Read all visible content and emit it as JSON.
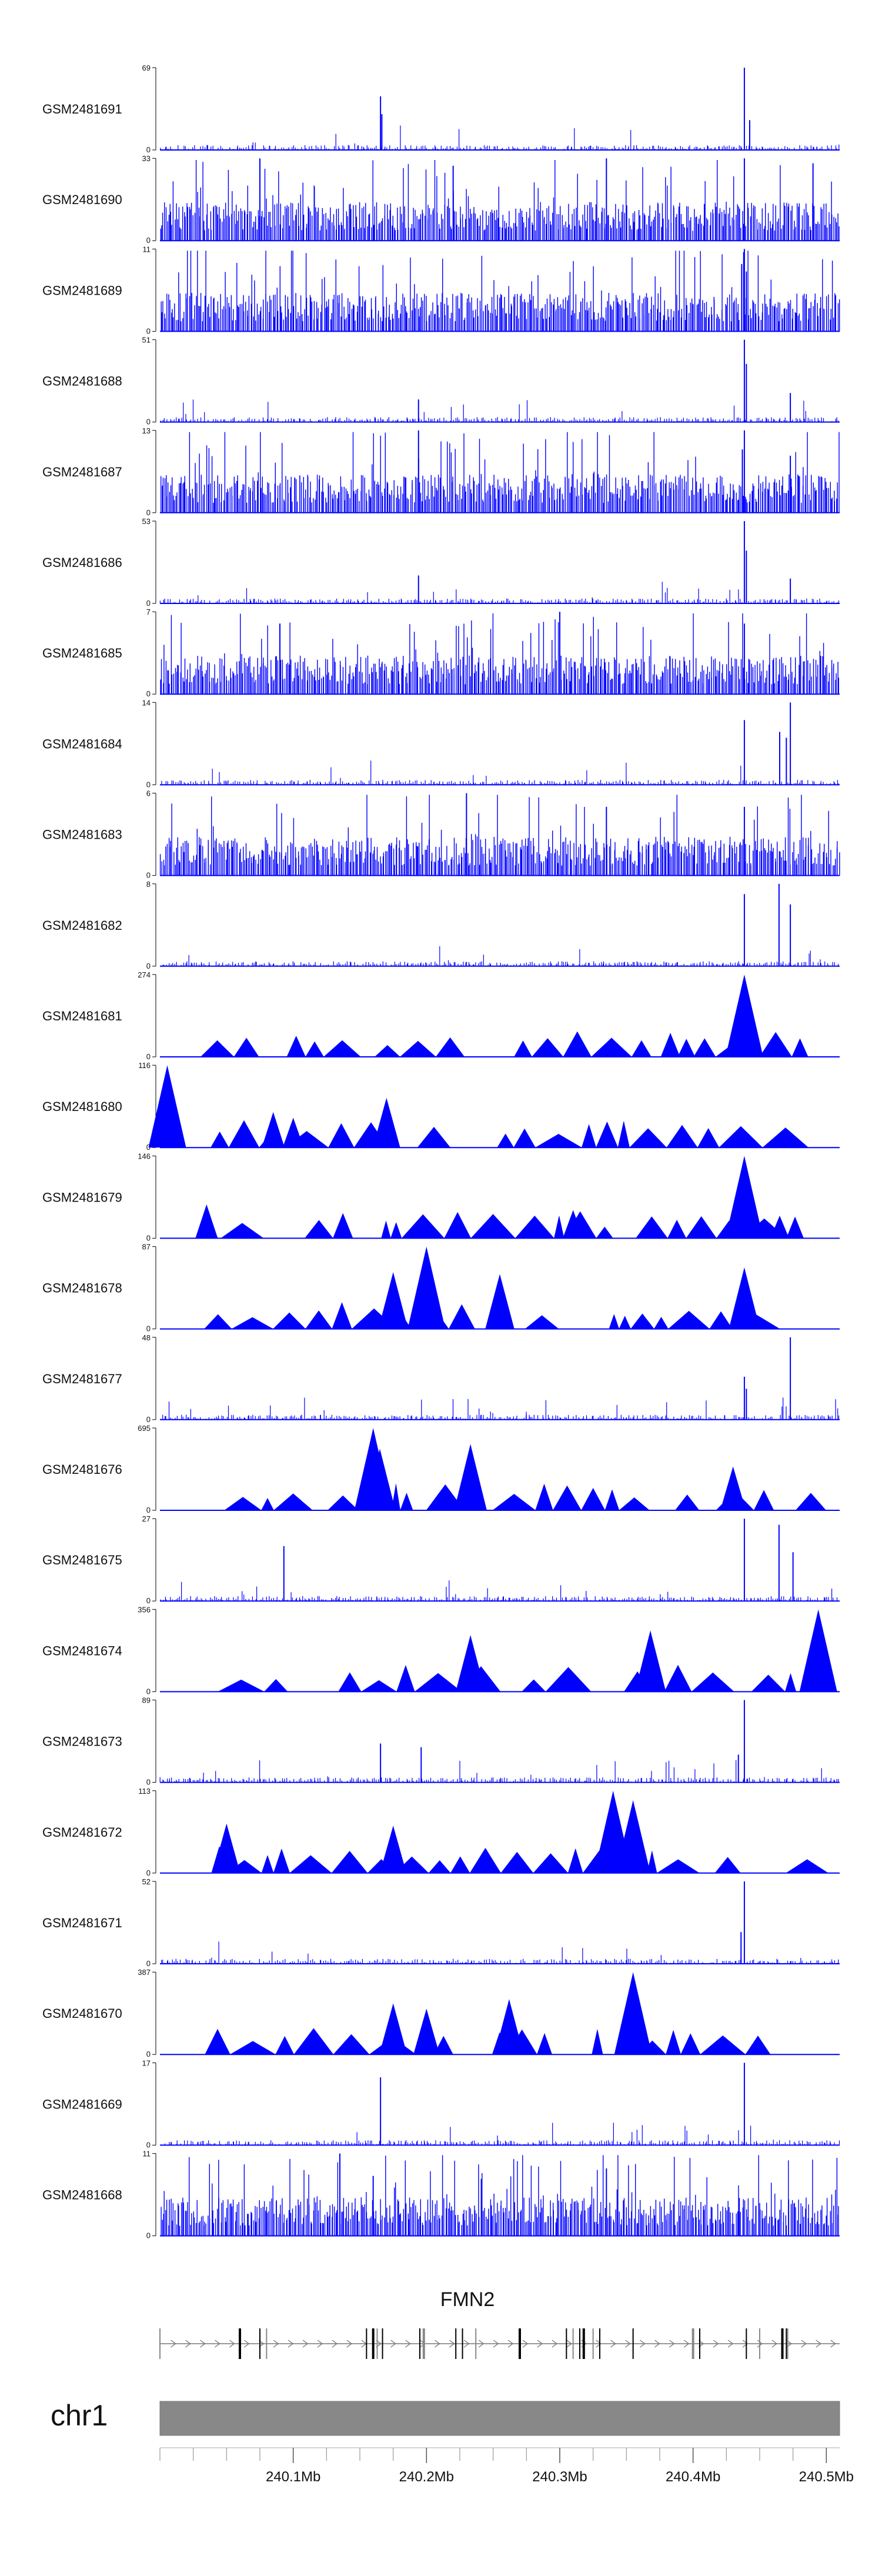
{
  "chart_data": {
    "type": "area",
    "title": "",
    "color": "#0000ff",
    "tracks": [
      {
        "name": "GSM2481691",
        "ymax": 69,
        "ymin": 0,
        "style": "spiky",
        "peaks": [
          {
            "x": 240.1655,
            "v": 45
          },
          {
            "x": 240.1665,
            "v": 30
          },
          {
            "x": 240.4385,
            "v": 69
          },
          {
            "x": 240.4425,
            "v": 25
          }
        ]
      },
      {
        "name": "GSM2481690",
        "ymax": 33,
        "ymin": 0,
        "style": "dense",
        "peaks": [
          {
            "x": 240.075,
            "v": 33
          },
          {
            "x": 240.22,
            "v": 30
          },
          {
            "x": 240.335,
            "v": 33
          },
          {
            "x": 240.4385,
            "v": 33
          },
          {
            "x": 240.49,
            "v": 31
          }
        ]
      },
      {
        "name": "GSM2481689",
        "ymax": 11,
        "ymin": 0,
        "style": "dense",
        "peaks": [
          {
            "x": 240.4385,
            "v": 11
          },
          {
            "x": 240.4365,
            "v": 9
          },
          {
            "x": 240.44,
            "v": 8
          }
        ]
      },
      {
        "name": "GSM2481688",
        "ymax": 51,
        "ymin": 0,
        "style": "spiky",
        "peaks": [
          {
            "x": 240.194,
            "v": 14
          },
          {
            "x": 240.4385,
            "v": 51
          },
          {
            "x": 240.44,
            "v": 36
          },
          {
            "x": 240.473,
            "v": 18
          }
        ]
      },
      {
        "name": "GSM2481687",
        "ymax": 13,
        "ymin": 0,
        "style": "dense",
        "peaks": [
          {
            "x": 240.194,
            "v": 13
          },
          {
            "x": 240.4385,
            "v": 13
          },
          {
            "x": 240.437,
            "v": 10
          },
          {
            "x": 240.473,
            "v": 9
          }
        ]
      },
      {
        "name": "GSM2481686",
        "ymax": 53,
        "ymin": 0,
        "style": "spiky",
        "peaks": [
          {
            "x": 240.194,
            "v": 18
          },
          {
            "x": 240.4385,
            "v": 53
          },
          {
            "x": 240.44,
            "v": 34
          },
          {
            "x": 240.473,
            "v": 16
          }
        ]
      },
      {
        "name": "GSM2481685",
        "ymax": 7,
        "ymin": 0,
        "style": "dense",
        "peaks": [
          {
            "x": 240.09,
            "v": 6
          },
          {
            "x": 240.3,
            "v": 7
          },
          {
            "x": 240.4385,
            "v": 6
          }
        ]
      },
      {
        "name": "GSM2481684",
        "ymax": 14,
        "ymin": 0,
        "style": "spiky",
        "peaks": [
          {
            "x": 240.4385,
            "v": 11
          },
          {
            "x": 240.465,
            "v": 9
          },
          {
            "x": 240.473,
            "v": 14
          },
          {
            "x": 240.47,
            "v": 8
          }
        ]
      },
      {
        "name": "GSM2481683",
        "ymax": 6,
        "ymin": 0,
        "style": "dense",
        "peaks": [
          {
            "x": 240.23,
            "v": 6
          },
          {
            "x": 240.335,
            "v": 5
          },
          {
            "x": 240.4385,
            "v": 5
          }
        ]
      },
      {
        "name": "GSM2481682",
        "ymax": 8,
        "ymin": 0,
        "style": "spiky",
        "peaks": [
          {
            "x": 240.4385,
            "v": 7
          },
          {
            "x": 240.4645,
            "v": 8
          },
          {
            "x": 240.473,
            "v": 6
          }
        ]
      },
      {
        "name": "GSM2481681",
        "ymax": 274,
        "ymin": 0,
        "style": "triangle",
        "peaks": [
          {
            "x": 240.4385,
            "v": 274
          },
          {
            "x": 240.383,
            "v": 80
          },
          {
            "x": 240.395,
            "v": 60
          }
        ]
      },
      {
        "name": "GSM2481680",
        "ymax": 116,
        "ymin": 0,
        "style": "triangle",
        "peaks": [
          {
            "x": 240.0055,
            "v": 116
          },
          {
            "x": 240.17,
            "v": 70
          },
          {
            "x": 240.085,
            "v": 50
          },
          {
            "x": 240.1,
            "v": 42
          }
        ]
      },
      {
        "name": "GSM2481679",
        "ymax": 146,
        "ymin": 0,
        "style": "triangle",
        "peaks": [
          {
            "x": 240.4385,
            "v": 146
          },
          {
            "x": 240.31,
            "v": 50
          },
          {
            "x": 240.035,
            "v": 60
          },
          {
            "x": 240.465,
            "v": 40
          }
        ]
      },
      {
        "name": "GSM2481678",
        "ymax": 87,
        "ymin": 0,
        "style": "triangle",
        "peaks": [
          {
            "x": 240.2,
            "v": 87
          },
          {
            "x": 240.175,
            "v": 60
          },
          {
            "x": 240.255,
            "v": 58
          },
          {
            "x": 240.4385,
            "v": 65
          }
        ]
      },
      {
        "name": "GSM2481677",
        "ymax": 48,
        "ymin": 0,
        "style": "spiky",
        "peaks": [
          {
            "x": 240.473,
            "v": 48
          },
          {
            "x": 240.4385,
            "v": 25
          },
          {
            "x": 240.44,
            "v": 18
          }
        ]
      },
      {
        "name": "GSM2481676",
        "ymax": 695,
        "ymin": 0,
        "style": "triangle",
        "peaks": [
          {
            "x": 240.16,
            "v": 695
          },
          {
            "x": 240.233,
            "v": 560
          },
          {
            "x": 240.165,
            "v": 520
          },
          {
            "x": 240.43,
            "v": 370
          }
        ]
      },
      {
        "name": "GSM2481675",
        "ymax": 27,
        "ymin": 0,
        "style": "spiky",
        "peaks": [
          {
            "x": 240.4385,
            "v": 27
          },
          {
            "x": 240.4645,
            "v": 25
          },
          {
            "x": 240.093,
            "v": 18
          },
          {
            "x": 240.475,
            "v": 16
          }
        ]
      },
      {
        "name": "GSM2481674",
        "ymax": 356,
        "ymin": 0,
        "style": "triangle",
        "peaks": [
          {
            "x": 240.494,
            "v": 356
          },
          {
            "x": 240.368,
            "v": 265
          },
          {
            "x": 240.233,
            "v": 245
          }
        ]
      },
      {
        "name": "GSM2481673",
        "ymax": 89,
        "ymin": 0,
        "style": "spiky",
        "peaks": [
          {
            "x": 240.4385,
            "v": 89
          },
          {
            "x": 240.1655,
            "v": 42
          },
          {
            "x": 240.196,
            "v": 38
          },
          {
            "x": 240.434,
            "v": 30
          }
        ]
      },
      {
        "name": "GSM2481672",
        "ymax": 113,
        "ymin": 0,
        "style": "triangle",
        "peaks": [
          {
            "x": 240.34,
            "v": 113
          },
          {
            "x": 240.355,
            "v": 100
          },
          {
            "x": 240.05,
            "v": 68
          },
          {
            "x": 240.175,
            "v": 65
          }
        ]
      },
      {
        "name": "GSM2481671",
        "ymax": 52,
        "ymin": 0,
        "style": "spiky",
        "peaks": [
          {
            "x": 240.4385,
            "v": 52
          },
          {
            "x": 240.436,
            "v": 20
          }
        ]
      },
      {
        "name": "GSM2481670",
        "ymax": 387,
        "ymin": 0,
        "style": "triangle",
        "peaks": [
          {
            "x": 240.355,
            "v": 387
          },
          {
            "x": 240.262,
            "v": 260
          },
          {
            "x": 240.175,
            "v": 240
          },
          {
            "x": 240.2,
            "v": 215
          }
        ]
      },
      {
        "name": "GSM2481669",
        "ymax": 17,
        "ymin": 0,
        "style": "spiky",
        "peaks": [
          {
            "x": 240.1655,
            "v": 14
          },
          {
            "x": 240.4385,
            "v": 17
          }
        ]
      },
      {
        "name": "GSM2481668",
        "ymax": 11,
        "ymin": 0,
        "style": "dense",
        "peaks": [
          {
            "x": 240.135,
            "v": 11
          },
          {
            "x": 240.335,
            "v": 9
          },
          {
            "x": 240.16,
            "v": 8
          }
        ]
      }
    ],
    "gene": {
      "name": "FMN2",
      "strand": "+",
      "start": 240.0,
      "end": 240.51,
      "exons": [
        240.0,
        240.06,
        240.075,
        240.08,
        240.155,
        240.16,
        240.163,
        240.167,
        240.195,
        240.198,
        240.222,
        240.227,
        240.237,
        240.27,
        240.305,
        240.31,
        240.315,
        240.318,
        240.325,
        240.33,
        240.355,
        240.4,
        240.405,
        240.44,
        240.45,
        240.467,
        240.47,
        240.471
      ]
    },
    "chromosome": "chr1",
    "x_axis": {
      "min": 240.0,
      "max": 240.51,
      "tick_labels": [
        {
          "x": 240.1,
          "label": "240.1Mb"
        },
        {
          "x": 240.2,
          "label": "240.2Mb"
        },
        {
          "x": 240.3,
          "label": "240.3Mb"
        },
        {
          "x": 240.4,
          "label": "240.4Mb"
        },
        {
          "x": 240.5,
          "label": "240.5Mb"
        }
      ],
      "minor_step": 0.025
    }
  }
}
